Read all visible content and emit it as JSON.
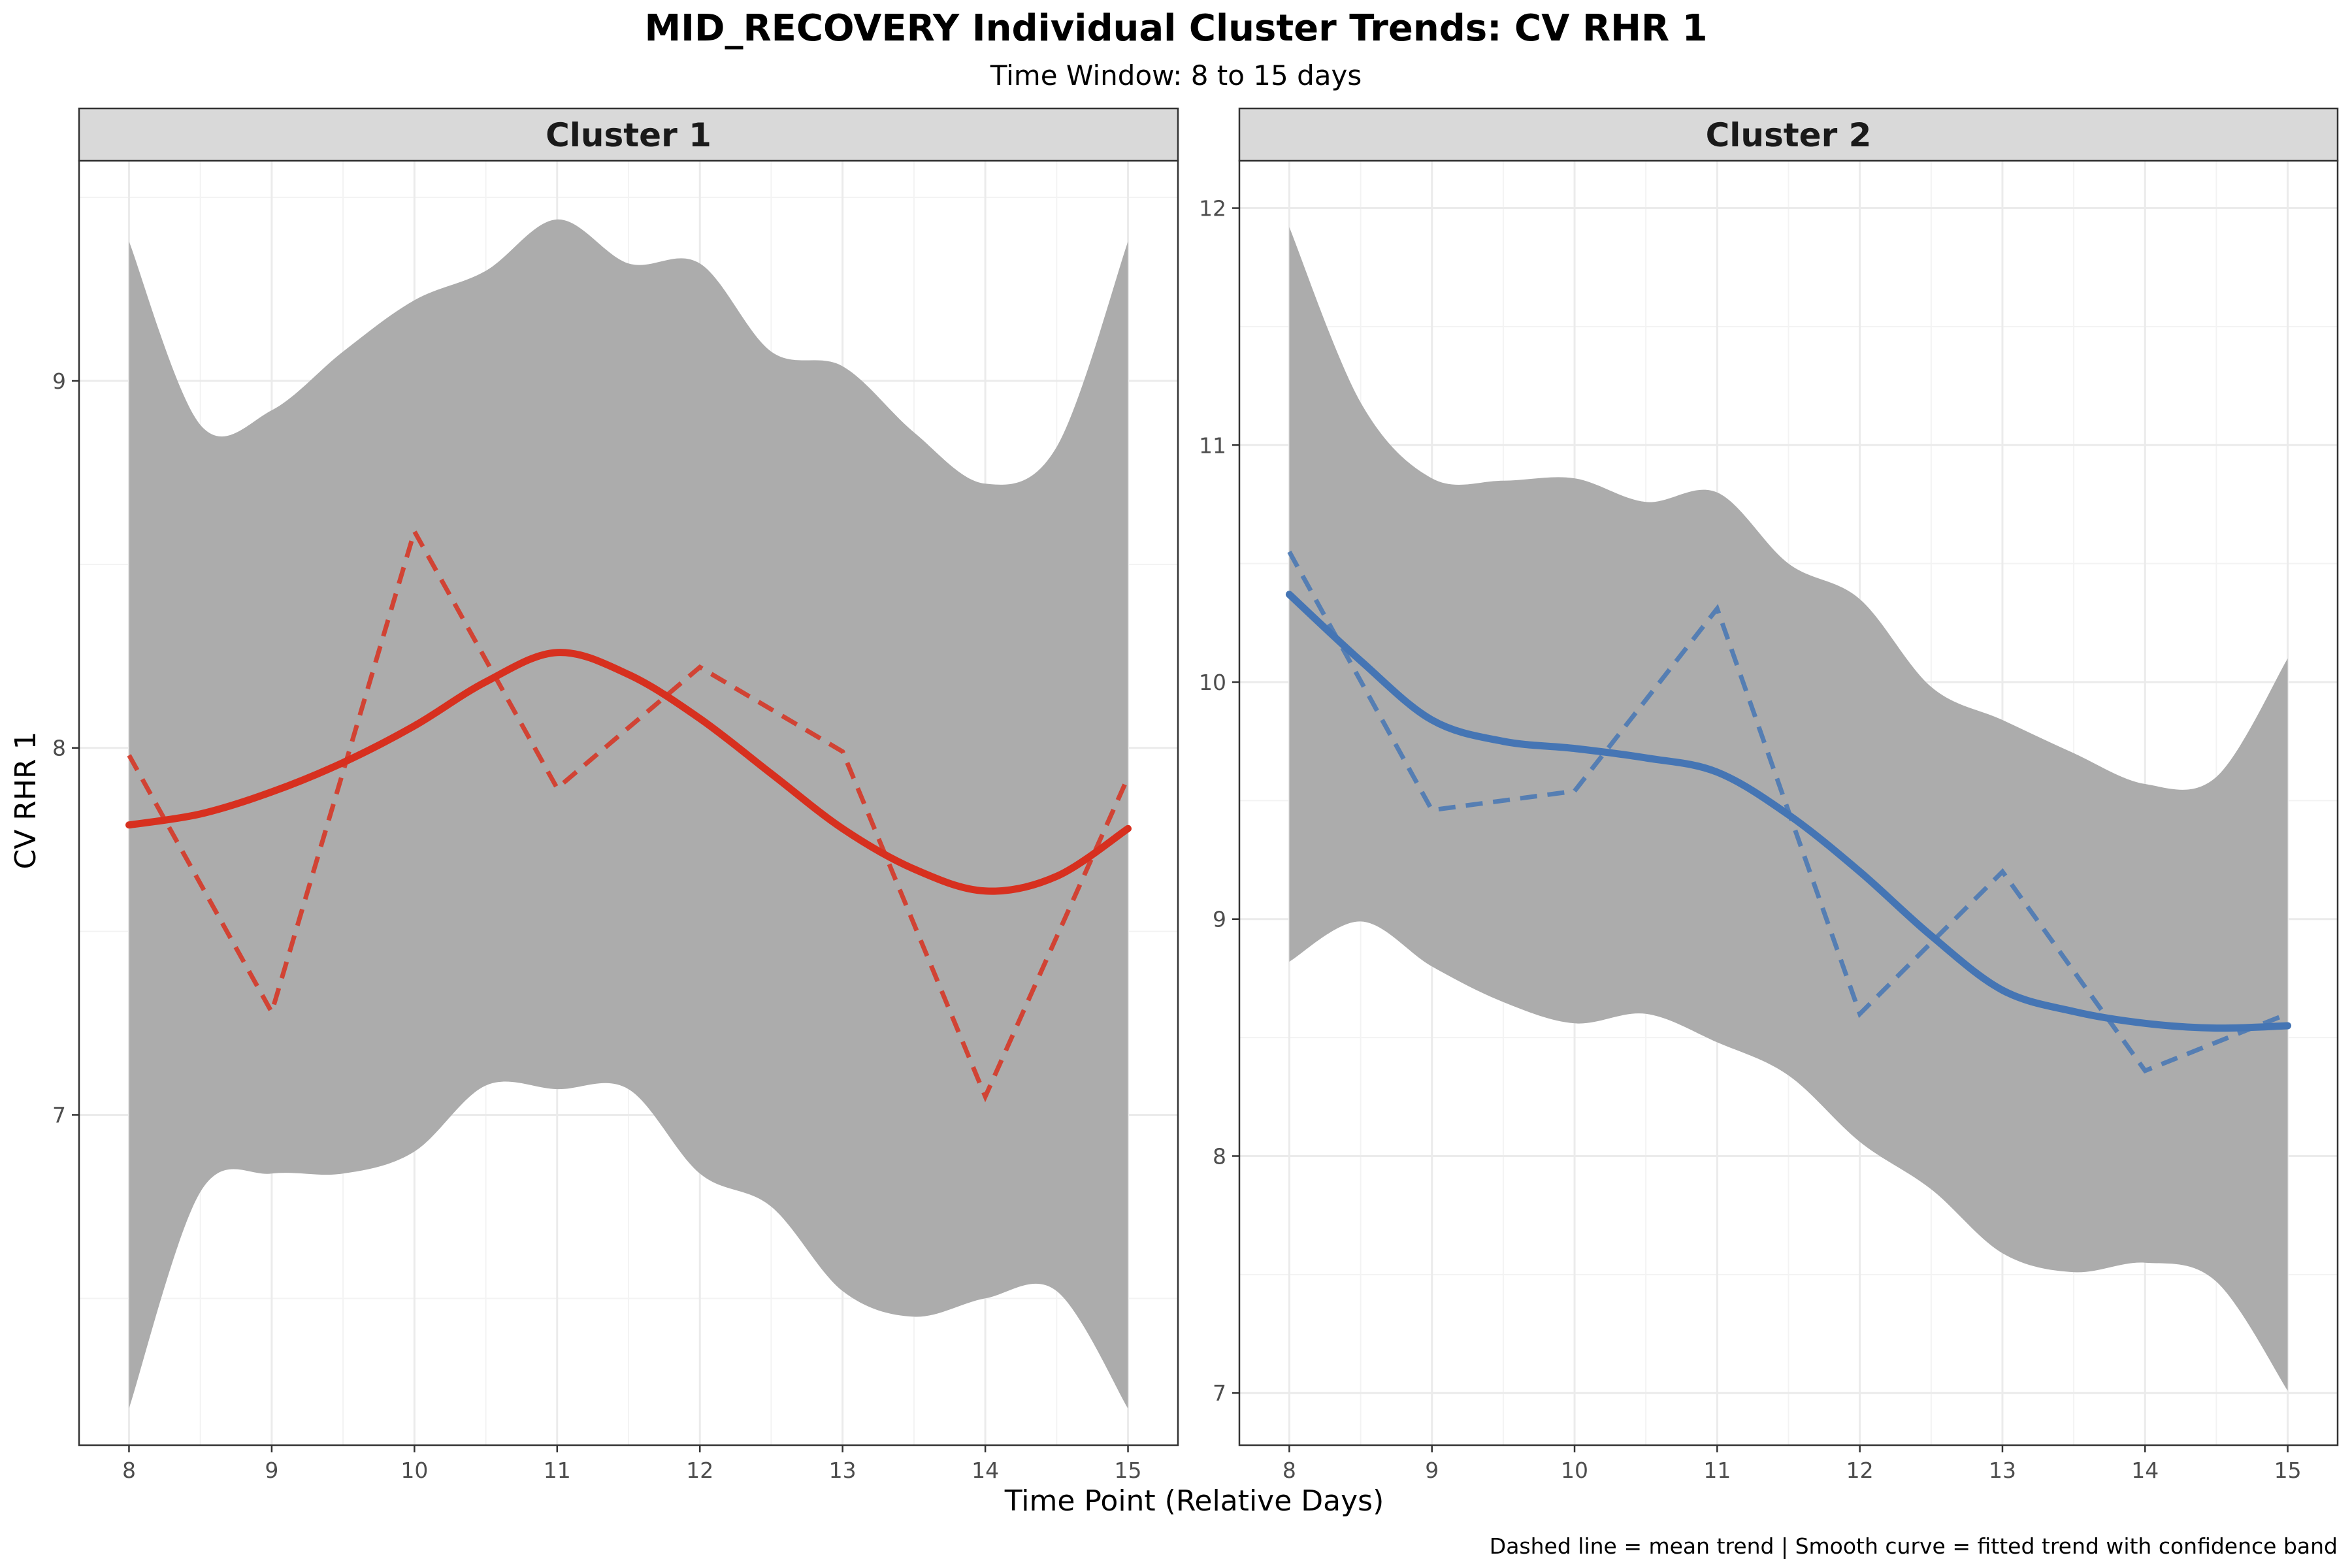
{
  "chart_data": {
    "type": "line",
    "title": "MID_RECOVERY Individual Cluster Trends: CV RHR 1",
    "subtitle": "Time Window: 8 to 15 days",
    "xlabel": "Time Point (Relative Days)",
    "ylabel": "CV RHR 1",
    "caption": "Dashed line = mean trend | Smooth curve = fitted trend with confidence band",
    "grid": true,
    "panels": [
      {
        "name": "Cluster 1",
        "color": "#d7301f",
        "xlim": [
          7.65,
          15.35
        ],
        "ylim": [
          6.1,
          9.6
        ],
        "x_ticks": [
          8,
          9,
          10,
          11,
          12,
          13,
          14,
          15
        ],
        "y_ticks": [
          7,
          8,
          9
        ],
        "mean_trend": {
          "x": [
            8,
            9,
            10,
            11,
            12,
            13,
            14,
            15
          ],
          "y": [
            7.98,
            7.28,
            8.59,
            7.89,
            8.22,
            7.99,
            7.05,
            7.92
          ]
        },
        "smooth_trend": {
          "x": [
            8,
            8.5,
            9,
            9.5,
            10,
            10.5,
            11,
            11.5,
            12,
            12.5,
            13,
            13.5,
            14,
            14.5,
            15
          ],
          "y": [
            7.79,
            7.82,
            7.88,
            7.96,
            8.06,
            8.18,
            8.26,
            8.2,
            8.08,
            7.93,
            7.78,
            7.67,
            7.61,
            7.65,
            7.78
          ],
          "upper": [
            9.38,
            8.88,
            8.92,
            9.08,
            9.22,
            9.3,
            9.44,
            9.32,
            9.32,
            9.08,
            9.04,
            8.86,
            8.72,
            8.82,
            9.38
          ],
          "lower": [
            6.2,
            6.79,
            6.84,
            6.84,
            6.9,
            7.08,
            7.07,
            7.07,
            6.84,
            6.75,
            6.52,
            6.45,
            6.5,
            6.52,
            6.2
          ]
        }
      },
      {
        "name": "Cluster 2",
        "color": "#4575b4",
        "xlim": [
          7.65,
          15.35
        ],
        "ylim": [
          6.78,
          12.2
        ],
        "x_ticks": [
          8,
          9,
          10,
          11,
          12,
          13,
          14,
          15
        ],
        "y_ticks": [
          7,
          8,
          9,
          10,
          11,
          12
        ],
        "mean_trend": {
          "x": [
            8,
            9,
            10,
            11,
            12,
            13,
            14,
            15
          ],
          "y": [
            10.55,
            9.46,
            9.54,
            10.31,
            8.6,
            9.2,
            8.36,
            8.6
          ]
        },
        "smooth_trend": {
          "x": [
            8,
            8.5,
            9,
            9.5,
            10,
            10.5,
            11,
            11.5,
            12,
            12.5,
            13,
            13.5,
            14,
            14.5,
            15
          ],
          "y": [
            10.37,
            10.09,
            9.84,
            9.75,
            9.72,
            9.68,
            9.62,
            9.44,
            9.2,
            8.93,
            8.7,
            8.61,
            8.56,
            8.54,
            8.55
          ],
          "upper": [
            11.92,
            11.18,
            10.86,
            10.85,
            10.86,
            10.76,
            10.8,
            10.5,
            10.35,
            9.98,
            9.84,
            9.7,
            9.57,
            9.6,
            10.1
          ],
          "lower": [
            8.82,
            8.99,
            8.8,
            8.65,
            8.56,
            8.6,
            8.48,
            8.34,
            8.06,
            7.86,
            7.59,
            7.51,
            7.55,
            7.47,
            7.01
          ]
        }
      }
    ]
  },
  "colors": {
    "band": "#acacac",
    "grid_major": "#ebebeb",
    "grid_minor": "#f3f3f3",
    "strip": "#d9d9d9",
    "panel_border": "#333333"
  }
}
